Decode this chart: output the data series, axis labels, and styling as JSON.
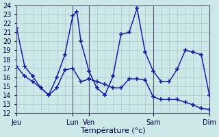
{
  "background_color": "#cce8e8",
  "grid_color": "#aacccc",
  "line_color": "#1a1aaa",
  "ylabel": "Température (°c)",
  "ylim": [
    12,
    24
  ],
  "yticks": [
    12,
    13,
    14,
    15,
    16,
    17,
    18,
    19,
    20,
    21,
    22,
    23,
    24
  ],
  "xtick_labels": [
    "Jeu",
    "Lun",
    "Ven",
    "Sam",
    "Dim"
  ],
  "xtick_positions": [
    0,
    7,
    9,
    17,
    24
  ],
  "vlines": [
    0,
    7,
    9,
    17,
    24
  ],
  "line1_x": [
    0,
    1,
    2,
    3,
    4,
    5,
    6,
    7,
    7.5,
    8,
    9,
    10,
    11,
    12,
    13,
    14,
    15,
    16,
    17,
    18,
    19,
    20,
    21,
    22,
    23,
    24
  ],
  "line1_y": [
    21.5,
    17.2,
    16.1,
    14.8,
    14.0,
    16.0,
    18.5,
    22.9,
    23.35,
    20.0,
    16.7,
    14.8,
    14.0,
    16.1,
    20.8,
    21.0,
    23.7,
    18.8,
    16.7,
    15.5,
    15.5,
    16.9,
    19.0,
    18.8,
    18.5,
    14.0
  ],
  "line2_x": [
    0,
    1,
    2,
    3,
    4,
    5,
    6,
    7,
    8,
    9,
    10,
    11,
    12,
    13,
    14,
    15,
    16,
    17,
    18,
    19,
    20,
    21,
    22,
    23,
    24
  ],
  "line2_y": [
    17.2,
    16.1,
    15.5,
    14.8,
    14.0,
    14.8,
    16.8,
    17.0,
    15.5,
    15.8,
    15.5,
    15.2,
    14.8,
    14.8,
    15.8,
    15.8,
    15.7,
    13.8,
    13.5,
    13.5,
    13.5,
    13.2,
    12.9,
    12.5,
    12.4
  ]
}
